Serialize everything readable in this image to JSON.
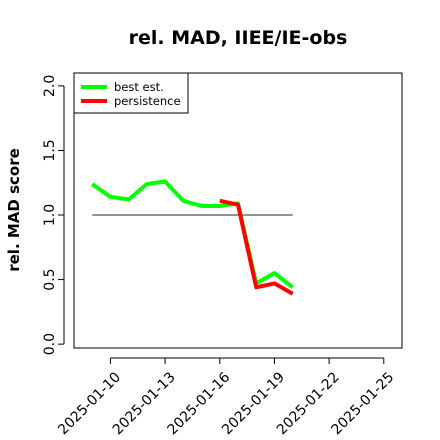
{
  "chart_data": {
    "type": "line",
    "title": "rel. MAD, IIEE/IE-obs",
    "xlabel": "",
    "ylabel": "rel. MAD score",
    "xlim": [
      "2025-01-08",
      "2025-01-26"
    ],
    "ylim": [
      -0.03,
      2.1
    ],
    "x_ticks": [
      "2025-01-10",
      "2025-01-13",
      "2025-01-16",
      "2025-01-19",
      "2025-01-22",
      "2025-01-25"
    ],
    "y_ticks": [
      "0.0",
      "0.5",
      "1.0",
      "1.5",
      "2.0"
    ],
    "reference_line": {
      "y": 1.0,
      "x": [
        "2025-01-09",
        "2025-01-20"
      ],
      "color": "#555555"
    },
    "legend_position": "top-left",
    "series": [
      {
        "name": "best est.",
        "color": "#00ff00",
        "x": [
          "2025-01-09",
          "2025-01-10",
          "2025-01-11",
          "2025-01-12",
          "2025-01-13",
          "2025-01-14",
          "2025-01-15",
          "2025-01-16",
          "2025-01-17",
          "2025-01-18",
          "2025-01-19",
          "2025-01-20"
        ],
        "values": [
          1.24,
          1.14,
          1.12,
          1.24,
          1.26,
          1.11,
          1.07,
          1.07,
          1.09,
          0.47,
          0.55,
          0.44
        ]
      },
      {
        "name": "persistence",
        "color": "#ff0000",
        "x": [
          "2025-01-16",
          "2025-01-17",
          "2025-01-18",
          "2025-01-19",
          "2025-01-20"
        ],
        "values": [
          1.11,
          1.08,
          0.44,
          0.47,
          0.39
        ]
      }
    ]
  }
}
